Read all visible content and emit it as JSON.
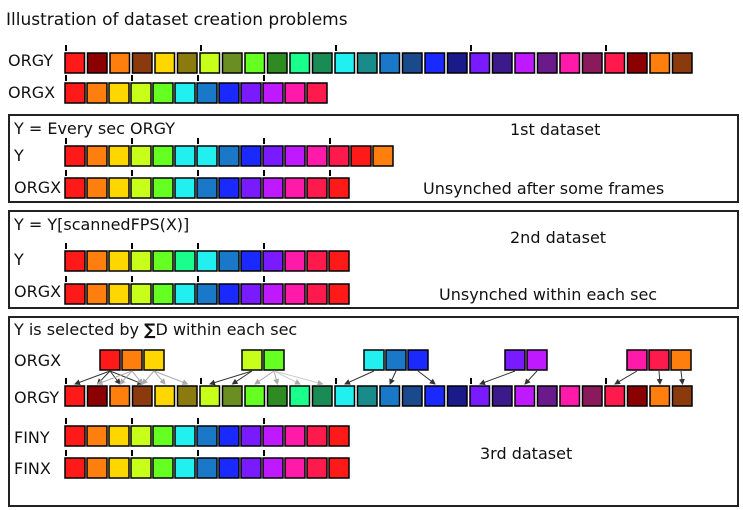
{
  "title": "Illustration of dataset creation problems",
  "labels": {
    "orgy": "ORGY",
    "orgx": "ORGX",
    "y": "Y",
    "finy": "FINY",
    "finx": "FINX"
  },
  "panels": [
    {
      "heading": "Y = Every sec ORGY",
      "name": "1st dataset",
      "note": "Unsynched after some frames"
    },
    {
      "heading": "Y = Y[scannedFPS(X)]",
      "name": "2nd dataset",
      "note": "Unsynched within each sec"
    },
    {
      "heading_prefix": "Y is selected by ",
      "heading_symbol": "∑",
      "heading_suffix": "D within each sec",
      "name": "3rd dataset",
      "note": ""
    }
  ],
  "colors": {
    "orgy": [
      "#ff1a1a",
      "#8b0000",
      "#ff7f0e",
      "#8b3a0e",
      "#ffd700",
      "#8b7a0e",
      "#c8ff1a",
      "#6b8e23",
      "#66ff22",
      "#2e8b22",
      "#1aff8c",
      "#1a8b55",
      "#22f0f0",
      "#1a8b8b",
      "#1a78c8",
      "#1a4a8b",
      "#1a2aff",
      "#1a1a8b",
      "#7a1aff",
      "#3d1a8b",
      "#bf1aff",
      "#6b1a8b",
      "#ff1aaa",
      "#8b1a5c",
      "#ff1a4d",
      "#8b0000",
      "#ff7f0e",
      "#8b3a0e"
    ],
    "orgx": [
      "#ff1a1a",
      "#ff7f0e",
      "#ffd700",
      "#c8ff1a",
      "#66ff22",
      "#22f0f0",
      "#1a78c8",
      "#1a2aff",
      "#7a1aff",
      "#bf1aff",
      "#ff1aaa",
      "#ff1a4d",
      "#ff1a1a",
      "#ff7f0e"
    ],
    "y1": [
      "#ff1a1a",
      "#ff7f0e",
      "#ffd700",
      "#c8ff1a",
      "#66ff22",
      "#22f0f0",
      "#22f0f0",
      "#1a78c8",
      "#1a2aff",
      "#7a1aff",
      "#bf1aff",
      "#ff1aaa",
      "#ff1a4d",
      "#ff1a1a",
      "#ff7f0e"
    ],
    "y2": [
      "#ff1a1a",
      "#ff7f0e",
      "#ffd700",
      "#c8ff1a",
      "#66ff22",
      "#1aff8c",
      "#22f0f0",
      "#1a78c8",
      "#1a2aff",
      "#7a1aff",
      "#ff1aaa",
      "#ff1a4d",
      "#ff1a1a",
      "#ff7f0e"
    ],
    "groups": [
      [
        "#ff1a1a",
        "#ff7f0e",
        "#ffd700"
      ],
      [
        "#c8ff1a",
        "#66ff22"
      ],
      [
        "#22f0f0",
        "#1a78c8",
        "#1a2aff"
      ],
      [
        "#7a1aff",
        "#bf1aff"
      ],
      [
        "#ff1aaa",
        "#ff1a4d",
        "#ff7f0e"
      ]
    ]
  }
}
